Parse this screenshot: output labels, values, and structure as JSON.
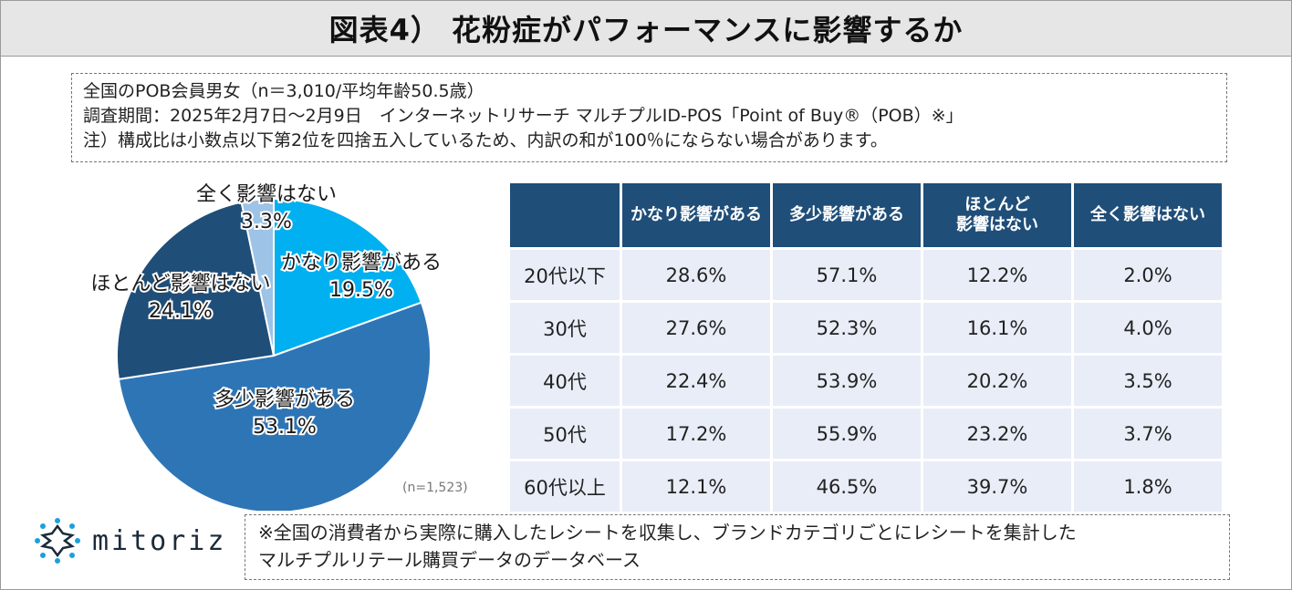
{
  "title": "図表4） 花粉症がパフォーマンスに影響するか",
  "notes": [
    "全国のPOB会員男女（n＝3,010/平均年齢50.5歳）",
    "調査期間：2025年2月7日～2月9日　インターネットリサーチ マルチプルID-POS「Point of Buy®（POB）※」",
    "注）構成比は小数点以下第2位を四捨五入しているため、内訳の和が100％にならない場合があります。"
  ],
  "chart_data": [
    {
      "type": "pie",
      "categories": [
        "かなり影響がある",
        "多少影響がある",
        "ほとんど影響はない",
        "全く影響はない"
      ],
      "values": [
        19.5,
        53.1,
        24.1,
        3.3
      ],
      "value_labels": [
        "19.5%",
        "53.1%",
        "24.1%",
        "3.3%"
      ],
      "colors": [
        "#00b0f0",
        "#2e75b6",
        "#1f4e79",
        "#9dc3e6"
      ],
      "sample_note": "(n=1,523)"
    },
    {
      "type": "table",
      "columns": [
        "",
        "かなり影響がある",
        "多少影響がある",
        "ほとんど\n影響はない",
        "全く影響はない"
      ],
      "rows": [
        [
          "20代以下",
          "28.6%",
          "57.1%",
          "12.2%",
          "2.0%"
        ],
        [
          "30代",
          "27.6%",
          "52.3%",
          "16.1%",
          "4.0%"
        ],
        [
          "40代",
          "22.4%",
          "53.9%",
          "20.2%",
          "3.5%"
        ],
        [
          "50代",
          "17.2%",
          "55.9%",
          "23.2%",
          "3.7%"
        ],
        [
          "60代以上",
          "12.1%",
          "46.5%",
          "39.7%",
          "1.8%"
        ]
      ],
      "header_color": "#1f4e79",
      "cell_color": "#e8edf7"
    }
  ],
  "logo": {
    "text": "mitoriz",
    "icon": "mitoriz-logo-icon",
    "color": "#1aa0dc"
  },
  "footnote": [
    "※全国の消費者から実際に購入したレシートを収集し、ブランドカテゴリごとにレシートを集計した",
    "マルチプルリテール購買データのデータベース"
  ]
}
